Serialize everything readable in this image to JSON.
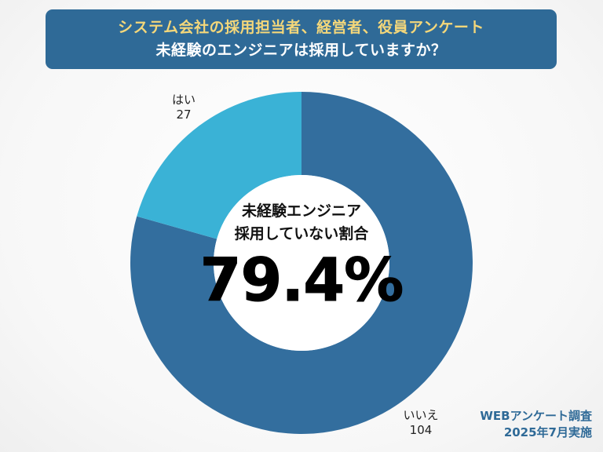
{
  "title": {
    "line1": "システム会社の採用担当者、経営者、役員アンケート",
    "line2": "未経験のエンジニアは採用していますか？"
  },
  "center": {
    "line1": "未経験エンジニア",
    "line2": "採用していない割合",
    "percent": "79.4%"
  },
  "footer": {
    "line1": "WEBアンケート調査",
    "line2": "2025年7月実施"
  },
  "chart_data": {
    "type": "pie",
    "donut": true,
    "categories": [
      "いいえ",
      "はい"
    ],
    "values": [
      104,
      27
    ],
    "colors": [
      "#336e9e",
      "#3ab2d6"
    ]
  },
  "labels": {
    "no": {
      "name": "いいえ",
      "value": "104"
    },
    "yes": {
      "name": "はい",
      "value": "27"
    }
  }
}
